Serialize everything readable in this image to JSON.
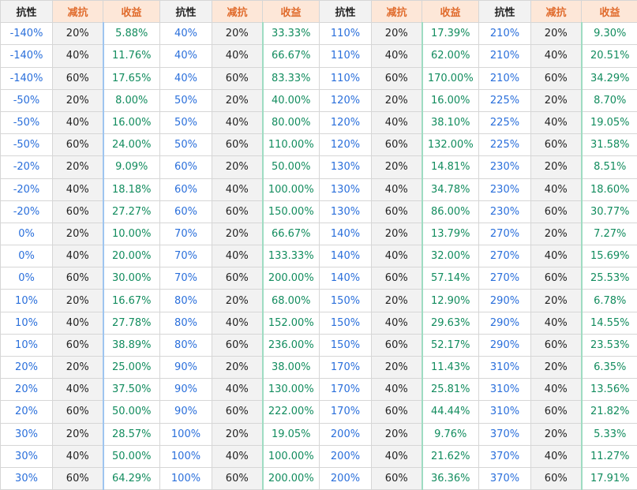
{
  "headers": [
    "抗性",
    "减抗",
    "收益",
    "抗性",
    "减抗",
    "收益",
    "抗性",
    "减抗",
    "收益",
    "抗性",
    "减抗",
    "收益"
  ],
  "rows": [
    [
      "-140%",
      "20%",
      "5.88%",
      "40%",
      "20%",
      "33.33%",
      "110%",
      "20%",
      "17.39%",
      "210%",
      "20%",
      "9.30%"
    ],
    [
      "-140%",
      "40%",
      "11.76%",
      "40%",
      "40%",
      "66.67%",
      "110%",
      "40%",
      "62.00%",
      "210%",
      "40%",
      "20.51%"
    ],
    [
      "-140%",
      "60%",
      "17.65%",
      "40%",
      "60%",
      "83.33%",
      "110%",
      "60%",
      "170.00%",
      "210%",
      "60%",
      "34.29%"
    ],
    [
      "-50%",
      "20%",
      "8.00%",
      "50%",
      "20%",
      "40.00%",
      "120%",
      "20%",
      "16.00%",
      "225%",
      "20%",
      "8.70%"
    ],
    [
      "-50%",
      "40%",
      "16.00%",
      "50%",
      "40%",
      "80.00%",
      "120%",
      "40%",
      "38.10%",
      "225%",
      "40%",
      "19.05%"
    ],
    [
      "-50%",
      "60%",
      "24.00%",
      "50%",
      "60%",
      "110.00%",
      "120%",
      "60%",
      "132.00%",
      "225%",
      "60%",
      "31.58%"
    ],
    [
      "-20%",
      "20%",
      "9.09%",
      "60%",
      "20%",
      "50.00%",
      "130%",
      "20%",
      "14.81%",
      "230%",
      "20%",
      "8.51%"
    ],
    [
      "-20%",
      "40%",
      "18.18%",
      "60%",
      "40%",
      "100.00%",
      "130%",
      "40%",
      "34.78%",
      "230%",
      "40%",
      "18.60%"
    ],
    [
      "-20%",
      "60%",
      "27.27%",
      "60%",
      "60%",
      "150.00%",
      "130%",
      "60%",
      "86.00%",
      "230%",
      "60%",
      "30.77%"
    ],
    [
      "0%",
      "20%",
      "10.00%",
      "70%",
      "20%",
      "66.67%",
      "140%",
      "20%",
      "13.79%",
      "270%",
      "20%",
      "7.27%"
    ],
    [
      "0%",
      "40%",
      "20.00%",
      "70%",
      "40%",
      "133.33%",
      "140%",
      "40%",
      "32.00%",
      "270%",
      "40%",
      "15.69%"
    ],
    [
      "0%",
      "60%",
      "30.00%",
      "70%",
      "60%",
      "200.00%",
      "140%",
      "60%",
      "57.14%",
      "270%",
      "60%",
      "25.53%"
    ],
    [
      "10%",
      "20%",
      "16.67%",
      "80%",
      "20%",
      "68.00%",
      "150%",
      "20%",
      "12.90%",
      "290%",
      "20%",
      "6.78%"
    ],
    [
      "10%",
      "40%",
      "27.78%",
      "80%",
      "40%",
      "152.00%",
      "150%",
      "40%",
      "29.63%",
      "290%",
      "40%",
      "14.55%"
    ],
    [
      "10%",
      "60%",
      "38.89%",
      "80%",
      "60%",
      "236.00%",
      "150%",
      "60%",
      "52.17%",
      "290%",
      "60%",
      "23.53%"
    ],
    [
      "20%",
      "20%",
      "25.00%",
      "90%",
      "20%",
      "38.00%",
      "170%",
      "20%",
      "11.43%",
      "310%",
      "20%",
      "6.35%"
    ],
    [
      "20%",
      "40%",
      "37.50%",
      "90%",
      "40%",
      "130.00%",
      "170%",
      "40%",
      "25.81%",
      "310%",
      "40%",
      "13.56%"
    ],
    [
      "20%",
      "60%",
      "50.00%",
      "90%",
      "60%",
      "222.00%",
      "170%",
      "60%",
      "44.44%",
      "310%",
      "60%",
      "21.82%"
    ],
    [
      "30%",
      "20%",
      "28.57%",
      "100%",
      "20%",
      "19.05%",
      "200%",
      "20%",
      "9.76%",
      "370%",
      "20%",
      "5.33%"
    ],
    [
      "30%",
      "40%",
      "50.00%",
      "100%",
      "40%",
      "100.00%",
      "200%",
      "40%",
      "21.62%",
      "370%",
      "40%",
      "11.27%"
    ],
    [
      "30%",
      "60%",
      "64.29%",
      "100%",
      "60%",
      "200.00%",
      "200%",
      "60%",
      "36.36%",
      "370%",
      "60%",
      "17.91%"
    ]
  ],
  "colors": {
    "resistance_text": "#2a6fdb",
    "gain_text": "#128c5e",
    "header_accent": "#e06a2b",
    "header_accent_bg": "#fde7d8",
    "stripe_bg": "#f2f2f2"
  }
}
